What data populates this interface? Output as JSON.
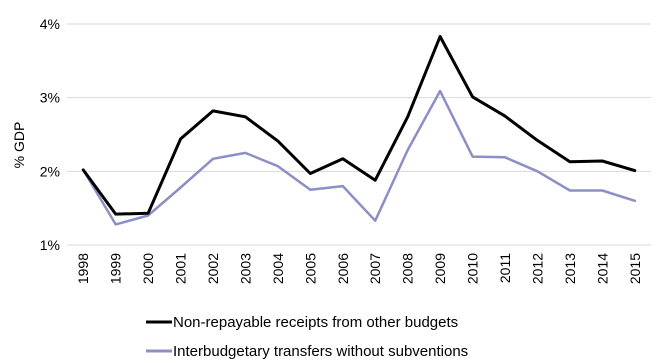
{
  "chart_data": {
    "type": "line",
    "title": "",
    "xlabel": "",
    "ylabel": "% GDP",
    "ylim": [
      1,
      4
    ],
    "yticks": [
      {
        "value": 1,
        "label": "1%"
      },
      {
        "value": 2,
        "label": "2%"
      },
      {
        "value": 3,
        "label": "3%"
      },
      {
        "value": 4,
        "label": "4%"
      }
    ],
    "grid": "horizontal",
    "legend_position": "bottom",
    "x": [
      "1998",
      "1999",
      "2000",
      "2001",
      "2002",
      "2003",
      "2004",
      "2005",
      "2006",
      "2007",
      "2008",
      "2009",
      "2010",
      "2011",
      "2012",
      "2013",
      "2014",
      "2015"
    ],
    "series": [
      {
        "name": "Non-repayable receipts from other budgets",
        "color": "#000000",
        "values": [
          2.02,
          1.42,
          1.43,
          2.44,
          2.82,
          2.74,
          2.41,
          1.97,
          2.17,
          1.88,
          2.74,
          3.83,
          3.01,
          2.75,
          2.42,
          2.13,
          2.14,
          2.01
        ]
      },
      {
        "name": "Interbudgetary transfers without subventions",
        "color": "#8c8fc6",
        "values": [
          2.02,
          1.28,
          1.4,
          1.78,
          2.17,
          2.25,
          2.07,
          1.75,
          1.8,
          1.33,
          2.29,
          3.09,
          2.2,
          2.19,
          2.0,
          1.74,
          1.74,
          1.6
        ]
      }
    ]
  }
}
